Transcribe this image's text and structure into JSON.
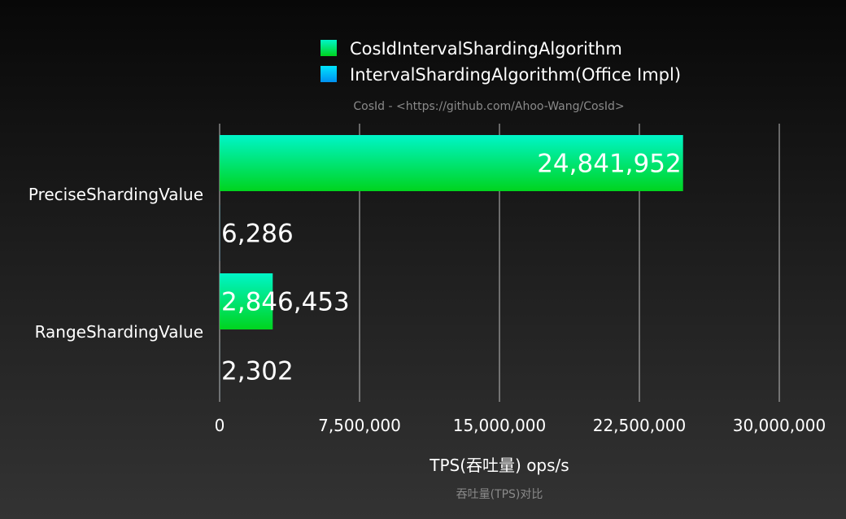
{
  "chart_data": {
    "type": "bar",
    "orientation": "horizontal",
    "categories": [
      "PreciseShardingValue",
      "RangeShardingValue"
    ],
    "series": [
      {
        "name": "CosIdIntervalShardingAlgorithm",
        "values": [
          24841952,
          2846453
        ],
        "labels": [
          "24,841,952",
          "2,846,453"
        ],
        "color_top": "#00f5c8",
        "color_bottom": "#00d41e"
      },
      {
        "name": "IntervalShardingAlgorithm(Office Impl)",
        "values": [
          6286,
          2302
        ],
        "labels": [
          "6,286",
          "2,302"
        ],
        "color_top": "#00e5ff",
        "color_bottom": "#0090f0"
      }
    ],
    "subtitle": "CosId - <https://github.com/Ahoo-Wang/CosId>",
    "xlabel": "TPS(吞吐量)  ops/s",
    "caption": "吞吐量(TPS)对比",
    "xlim": [
      0,
      30000000
    ],
    "xticks": [
      0,
      7500000,
      15000000,
      22500000,
      30000000
    ],
    "xtick_labels": [
      "0",
      "7,500,000",
      "15,000,000",
      "22,500,000",
      "30,000,000"
    ],
    "grid": "vertical",
    "legend_position": "top-center"
  }
}
